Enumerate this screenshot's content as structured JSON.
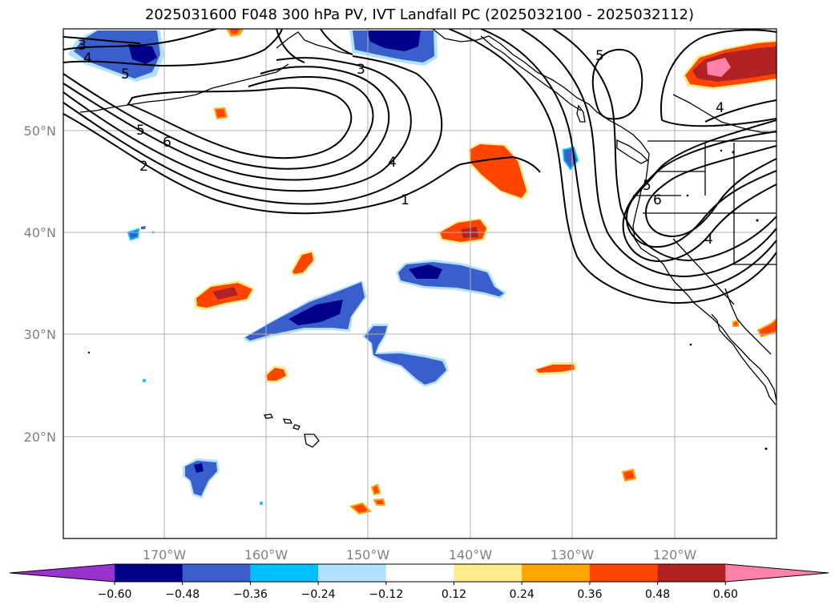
{
  "title": "2025031600 F048 300 hPa PV, IVT Landfall PC (2025032100 - 2025032112)",
  "lon_ticks": [
    {
      "label": "170°W",
      "lon": -170
    },
    {
      "label": "160°W",
      "lon": -160
    },
    {
      "label": "150°W",
      "lon": -150
    },
    {
      "label": "140°W",
      "lon": -140
    },
    {
      "label": "130°W",
      "lon": -130
    },
    {
      "label": "120°W",
      "lon": -120
    }
  ],
  "lat_ticks": [
    {
      "label": "50°N",
      "lat": 50
    },
    {
      "label": "40°N",
      "lat": 40
    },
    {
      "label": "30°N",
      "lat": 30
    },
    {
      "label": "20°N",
      "lat": 20
    }
  ],
  "colorbar": {
    "ticks": [
      "−0.60",
      "−0.48",
      "−0.36",
      "−0.24",
      "−0.12",
      "0.12",
      "0.24",
      "0.36",
      "0.48",
      "0.60"
    ],
    "colors": [
      "#9a32cd",
      "#00008b",
      "#3a5fcd",
      "#00bfff",
      "#b0e2ff",
      "#ffffff",
      "#ffec8b",
      "#ffa500",
      "#ff4500",
      "#b22222",
      "#ff82ab"
    ]
  },
  "contour_labels": [
    "3",
    "4",
    "5",
    "5",
    "6",
    "2",
    "3",
    "4",
    "1",
    "5",
    "4",
    "5",
    "6",
    "4"
  ]
}
